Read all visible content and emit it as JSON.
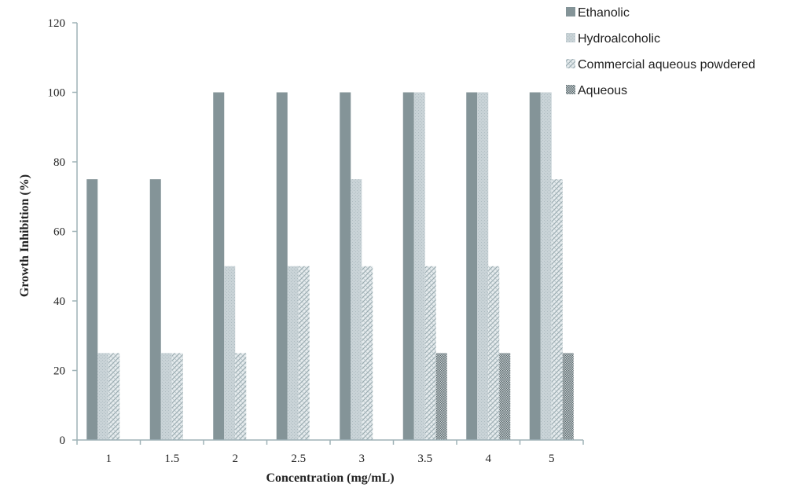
{
  "chart_data": {
    "type": "bar",
    "title": "",
    "xlabel": "Concentration (mg/mL)",
    "ylabel": "Growth Inhibition (%)",
    "categories": [
      "1",
      "1.5",
      "2",
      "2.5",
      "3",
      "3.5",
      "4",
      "5"
    ],
    "ylim": [
      0,
      120
    ],
    "yticks": [
      0,
      20,
      40,
      60,
      80,
      100,
      120
    ],
    "grid": false,
    "legend_position": "top-right",
    "series": [
      {
        "name": "Ethanolic",
        "color": "#849498",
        "pattern": "solid",
        "values": [
          75,
          75,
          100,
          100,
          100,
          100,
          100,
          100
        ]
      },
      {
        "name": "Hydroalcoholic",
        "color": "#bcc9ce",
        "pattern": "light-stipple",
        "values": [
          25,
          25,
          50,
          50,
          75,
          100,
          100,
          100
        ]
      },
      {
        "name": "Commercial aqueous powdered",
        "color": "#a8b6bb",
        "pattern": "crosshatch",
        "values": [
          25,
          25,
          25,
          50,
          50,
          50,
          50,
          75
        ]
      },
      {
        "name": "Aqueous",
        "color": "#6f7c80",
        "pattern": "dense-checker",
        "values": [
          0,
          0,
          0,
          0,
          0,
          25,
          25,
          25
        ]
      }
    ]
  }
}
